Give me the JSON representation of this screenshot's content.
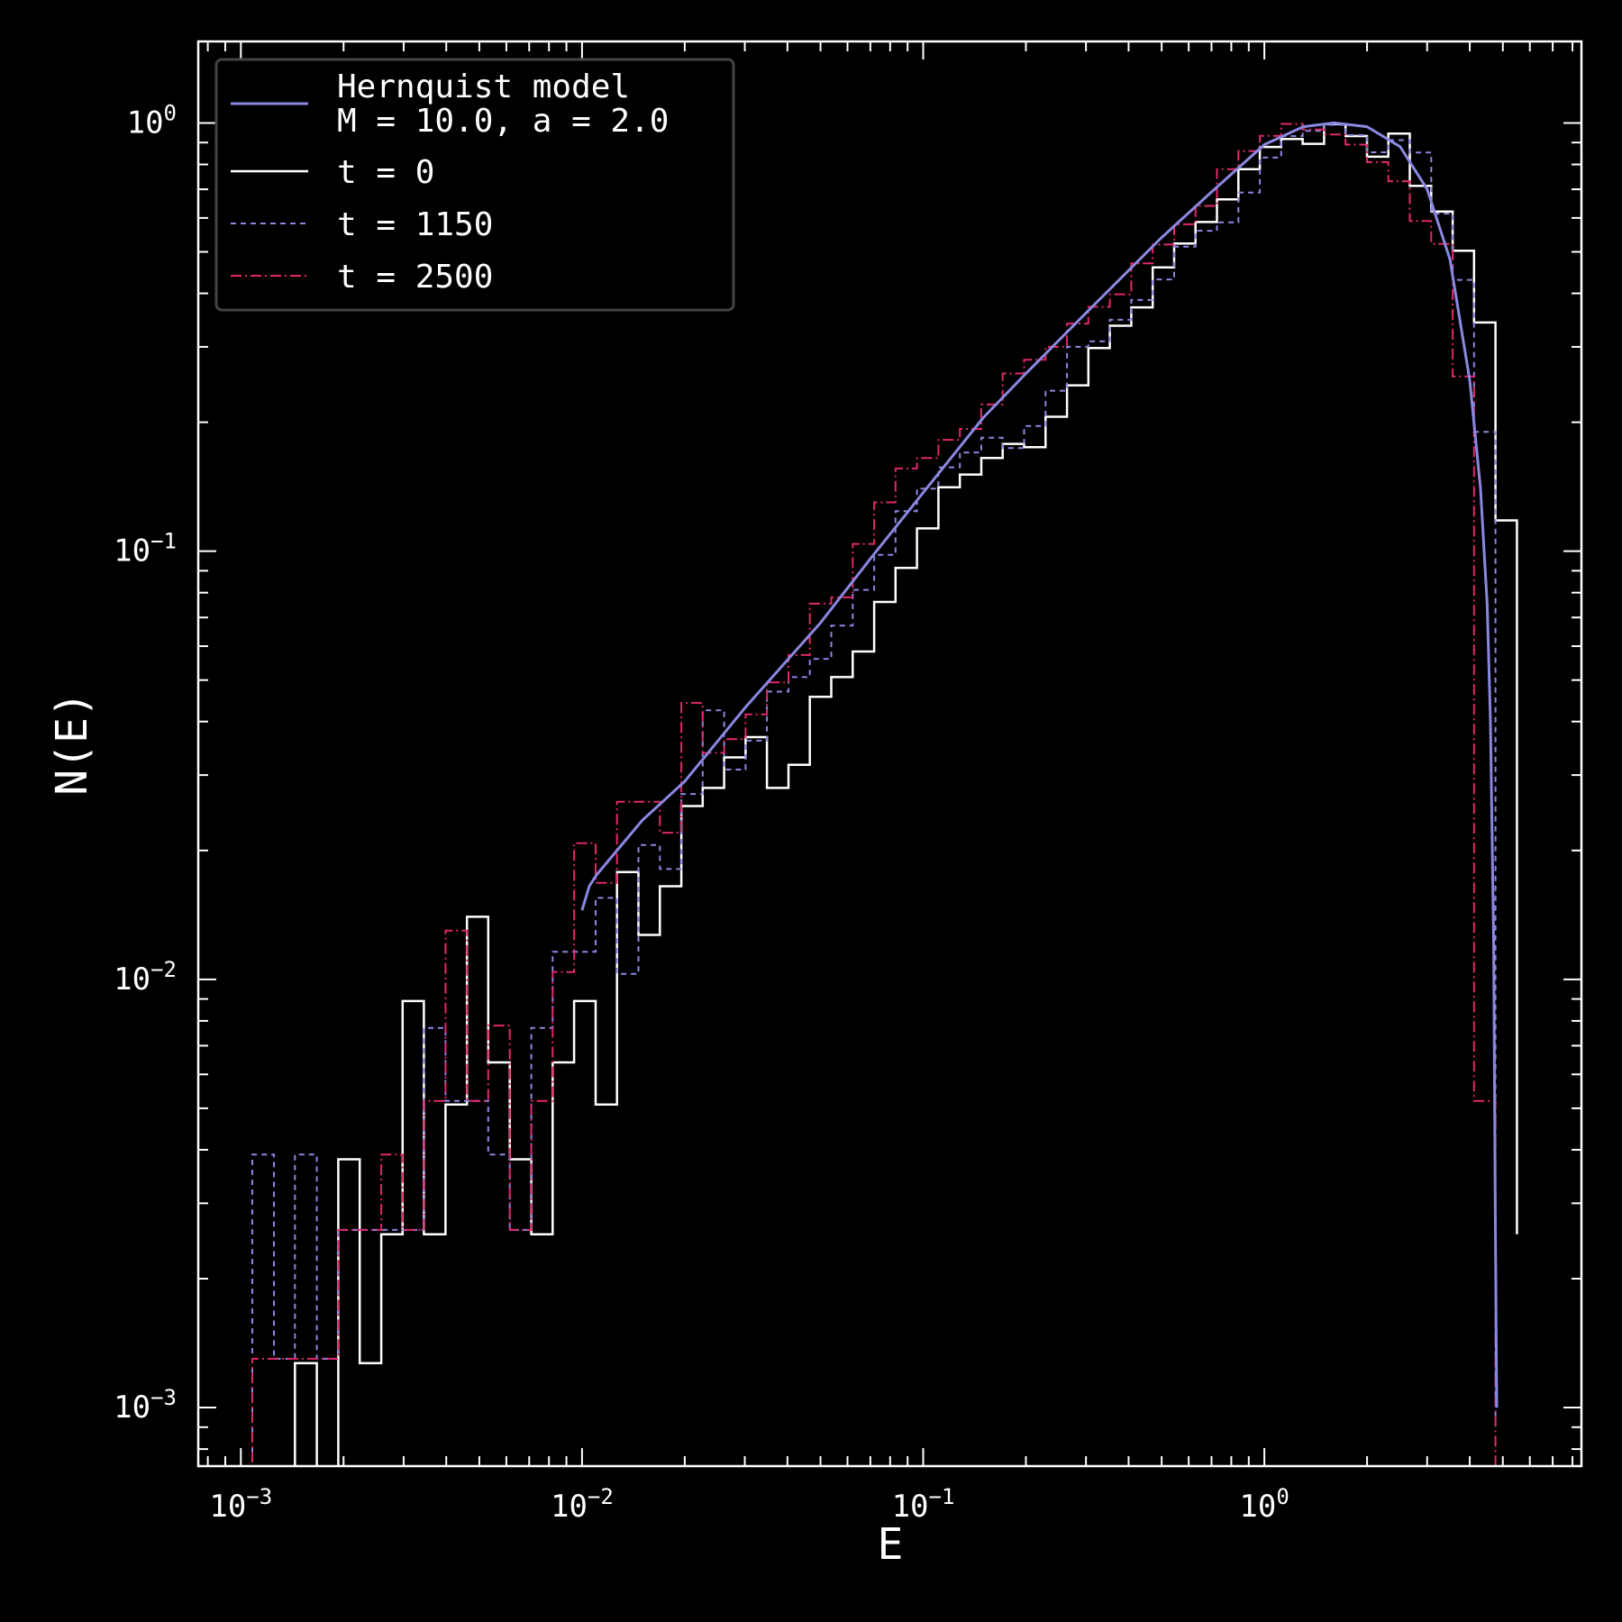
{
  "chart_data": {
    "type": "line",
    "xlabel": "E",
    "ylabel": "N(E)",
    "xscale": "log",
    "yscale": "log",
    "xlim": [
      0.00075,
      8.5
    ],
    "ylim": [
      0.00073,
      1.55
    ],
    "x_ticks": [
      {
        "base": "10",
        "exp": "−3",
        "value": 0.001
      },
      {
        "base": "10",
        "exp": "−2",
        "value": 0.01
      },
      {
        "base": "10",
        "exp": "−1",
        "value": 0.1
      },
      {
        "base": "10",
        "exp": "0",
        "value": 1
      }
    ],
    "y_ticks": [
      {
        "base": "10",
        "exp": "−3",
        "value": 0.001
      },
      {
        "base": "10",
        "exp": "−2",
        "value": 0.01
      },
      {
        "base": "10",
        "exp": "−1",
        "value": 0.1
      },
      {
        "base": "10",
        "exp": "0",
        "value": 1
      }
    ],
    "grid": false,
    "legend_position": "top-left",
    "legend": {
      "model_line1": "Hernquist model",
      "model_line2": "M = 10.0, a = 2.0"
    },
    "model": {
      "name": "Hernquist model",
      "color": "#8a88e0",
      "x": [
        0.01,
        0.0105,
        0.011,
        0.015,
        0.02,
        0.03,
        0.05,
        0.07,
        0.1,
        0.15,
        0.2,
        0.3,
        0.5,
        0.7,
        1.0,
        1.3,
        1.6,
        2.0,
        2.5,
        3.0,
        3.5,
        4.0,
        4.3,
        4.5,
        4.6,
        4.7,
        4.75,
        4.8
      ],
      "y": [
        0.0145,
        0.0165,
        0.0175,
        0.0235,
        0.029,
        0.043,
        0.068,
        0.096,
        0.137,
        0.205,
        0.26,
        0.36,
        0.54,
        0.69,
        0.89,
        0.98,
        1.0,
        0.98,
        0.88,
        0.7,
        0.48,
        0.25,
        0.14,
        0.075,
        0.04,
        0.012,
        0.003,
        0.001
      ]
    },
    "bin_edges": [
      0.00108,
      0.00125,
      0.00144,
      0.00167,
      0.00193,
      0.00223,
      0.00258,
      0.00298,
      0.00344,
      0.00398,
      0.0046,
      0.00531,
      0.00614,
      0.0071,
      0.0082,
      0.00948,
      0.01096,
      0.01266,
      0.01463,
      0.01691,
      0.01954,
      0.02258,
      0.02609,
      0.03015,
      0.03484,
      0.04027,
      0.04653,
      0.05377,
      0.06214,
      0.07181,
      0.08298,
      0.09589,
      0.11081,
      0.12806,
      0.14798,
      0.171,
      0.19761,
      0.22836,
      0.26389,
      0.30495,
      0.3524,
      0.40723,
      0.47059,
      0.54381,
      0.62842,
      0.7262,
      0.83919,
      0.96976,
      1.12065,
      1.29501,
      1.49651,
      1.72936,
      1.99843,
      2.30937,
      2.66869,
      3.08392,
      3.56374,
      4.11823,
      4.75899
    ],
    "series": [
      {
        "name": "t = 0",
        "color": "#ffffff",
        "dash": "solid",
        "values": [
          0.0006,
          0.0006,
          0.00127,
          0.0006,
          0.0038,
          0.00127,
          0.00254,
          0.0089,
          0.00254,
          0.0051,
          0.014,
          0.0064,
          0.0038,
          0.00254,
          0.0064,
          0.0089,
          0.0051,
          0.0178,
          0.0127,
          0.0165,
          0.0254,
          0.028,
          0.033,
          0.0368,
          0.028,
          0.0317,
          0.0457,
          0.0508,
          0.0583,
          0.0761,
          0.0914,
          0.113,
          0.141,
          0.151,
          0.165,
          0.178,
          0.175,
          0.206,
          0.244,
          0.298,
          0.336,
          0.371,
          0.46,
          0.523,
          0.587,
          0.663,
          0.78,
          0.879,
          0.917,
          0.894,
          0.994,
          0.932,
          0.834,
          0.944,
          0.713,
          0.621,
          0.503,
          0.342,
          0.118
        ],
        "last_bin_value": 0.00254
      },
      {
        "name": "t = 1150",
        "color": "#8a88e0",
        "dash": "6,5",
        "values": [
          0.0039,
          0.0013,
          0.0039,
          0.0013,
          0.0026,
          0.0026,
          0.0026,
          0.0026,
          0.0077,
          0.0052,
          0.0052,
          0.0039,
          0.0026,
          0.0077,
          0.0116,
          0.0116,
          0.0155,
          0.0103,
          0.0206,
          0.0181,
          0.0271,
          0.0425,
          0.0309,
          0.0361,
          0.047,
          0.0508,
          0.056,
          0.067,
          0.0812,
          0.098,
          0.124,
          0.14,
          0.157,
          0.17,
          0.184,
          0.174,
          0.196,
          0.237,
          0.3,
          0.309,
          0.347,
          0.386,
          0.431,
          0.514,
          0.56,
          0.586,
          0.688,
          0.83,
          0.932,
          0.958,
          0.99,
          0.937,
          0.854,
          0.912,
          0.853,
          0.614,
          0.43,
          0.19,
          0.0009
        ]
      },
      {
        "name": "t = 2500",
        "color": "#e0286e",
        "dash": "12,4,2,4",
        "values": [
          0.0013,
          0.0013,
          0.0013,
          0.0013,
          0.0026,
          0.0026,
          0.0039,
          0.0026,
          0.0052,
          0.013,
          0.0052,
          0.0078,
          0.0026,
          0.0052,
          0.0104,
          0.0208,
          0.0168,
          0.026,
          0.026,
          0.022,
          0.0442,
          0.0338,
          0.0364,
          0.0416,
          0.0494,
          0.0572,
          0.0754,
          0.078,
          0.104,
          0.13,
          0.156,
          0.165,
          0.182,
          0.193,
          0.22,
          0.26,
          0.28,
          0.3,
          0.34,
          0.372,
          0.398,
          0.47,
          0.52,
          0.58,
          0.64,
          0.78,
          0.86,
          0.933,
          0.995,
          0.965,
          0.94,
          0.89,
          0.81,
          0.731,
          0.59,
          0.522,
          0.256,
          0.0052,
          0.0005
        ]
      }
    ]
  }
}
